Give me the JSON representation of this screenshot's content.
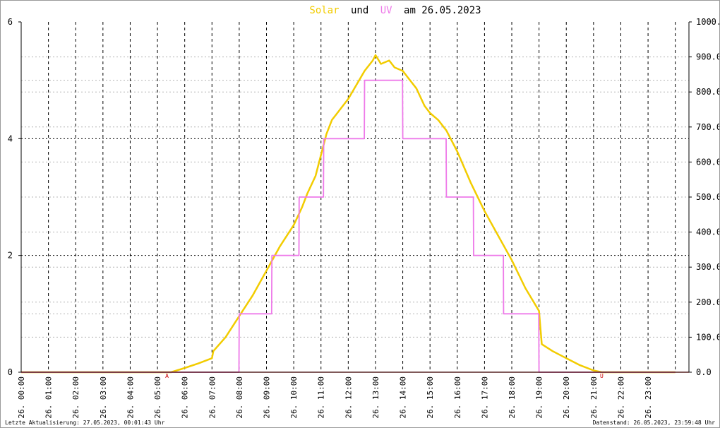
{
  "chart_data": {
    "type": "line",
    "title": {
      "part1": "Solar",
      "part2": "und",
      "part3": "UV",
      "part4": "am 26.05.2023"
    },
    "colors": {
      "solar": "#f2cc00",
      "uv": "#ee7ae9",
      "background": "#ffffff",
      "grid": "#000000",
      "marker": "#cc0000",
      "baseline": "#ff6666"
    },
    "x_axis": {
      "range_hours": [
        0,
        24.5
      ],
      "tick_labels": [
        "26. 00:00",
        "26. 01:00",
        "26. 02:00",
        "26. 03:00",
        "26. 04:00",
        "26. 05:00",
        "26. 06:00",
        "26. 07:00",
        "26. 08:00",
        "26. 09:00",
        "26. 10:00",
        "26. 11:00",
        "26. 12:00",
        "26. 13:00",
        "26. 14:00",
        "26. 15:00",
        "26. 16:00",
        "26. 17:00",
        "26. 18:00",
        "26. 19:00",
        "26. 20:00",
        "26. 21:00",
        "26. 22:00",
        "26. 23:00"
      ]
    },
    "y_left": {
      "range": [
        0,
        6
      ],
      "tick_labels": [
        "0",
        "2",
        "4",
        "6"
      ],
      "ticks": [
        0,
        2,
        4,
        6
      ],
      "minor_grid": [
        1,
        3,
        5
      ]
    },
    "y_right": {
      "range": [
        0,
        1000
      ],
      "tick_labels": [
        "0.0",
        "100.0",
        "200.0",
        "300.0",
        "400.0",
        "500.0",
        "600.0",
        "700.0",
        "800.0",
        "900.0",
        "1000.0"
      ],
      "ticks": [
        0,
        100,
        200,
        300,
        400,
        500,
        600,
        700,
        800,
        900,
        1000
      ]
    },
    "markers": {
      "sunrise_label": "A",
      "sunrise_hour": 5.35,
      "sunset_label": "U",
      "sunset_hour": 21.3
    },
    "series": [
      {
        "name": "Solar",
        "axis": "right",
        "points": [
          [
            0,
            0
          ],
          [
            5.5,
            0
          ],
          [
            6,
            12
          ],
          [
            6.5,
            25
          ],
          [
            7,
            40
          ],
          [
            7.05,
            60
          ],
          [
            7.5,
            100
          ],
          [
            8,
            160
          ],
          [
            8.5,
            220
          ],
          [
            9,
            290
          ],
          [
            9.5,
            360
          ],
          [
            10,
            420
          ],
          [
            10.3,
            470
          ],
          [
            10.5,
            510
          ],
          [
            10.8,
            560
          ],
          [
            11,
            620
          ],
          [
            11.2,
            680
          ],
          [
            11.4,
            720
          ],
          [
            11.6,
            740
          ],
          [
            11.8,
            760
          ],
          [
            12,
            780
          ],
          [
            12.3,
            820
          ],
          [
            12.6,
            860
          ],
          [
            12.9,
            890
          ],
          [
            13,
            905
          ],
          [
            13.2,
            880
          ],
          [
            13.5,
            890
          ],
          [
            13.7,
            870
          ],
          [
            14,
            860
          ],
          [
            14.2,
            840
          ],
          [
            14.5,
            810
          ],
          [
            14.8,
            760
          ],
          [
            15,
            740
          ],
          [
            15.3,
            720
          ],
          [
            15.6,
            690
          ],
          [
            16,
            630
          ],
          [
            16.5,
            540
          ],
          [
            17,
            460
          ],
          [
            17.5,
            390
          ],
          [
            18,
            320
          ],
          [
            18.5,
            240
          ],
          [
            19,
            175
          ],
          [
            19.1,
            80
          ],
          [
            19.5,
            60
          ],
          [
            20,
            40
          ],
          [
            20.5,
            20
          ],
          [
            21,
            5
          ],
          [
            21.3,
            0
          ],
          [
            24,
            0
          ]
        ]
      },
      {
        "name": "UV",
        "axis": "left",
        "points": [
          [
            0,
            0
          ],
          [
            7.99,
            0
          ],
          [
            8,
            1
          ],
          [
            9.19,
            1
          ],
          [
            9.2,
            2
          ],
          [
            10.19,
            2
          ],
          [
            10.2,
            3
          ],
          [
            11.09,
            3
          ],
          [
            11.1,
            4
          ],
          [
            12.59,
            4
          ],
          [
            12.6,
            5
          ],
          [
            13.99,
            5
          ],
          [
            14,
            4
          ],
          [
            15.59,
            4
          ],
          [
            15.6,
            3
          ],
          [
            16.59,
            3
          ],
          [
            16.6,
            2
          ],
          [
            17.69,
            2
          ],
          [
            17.7,
            1
          ],
          [
            18.99,
            1
          ],
          [
            19,
            0
          ],
          [
            24,
            0
          ]
        ]
      }
    ],
    "footer": {
      "left": "Letzte Aktualisierung: 27.05.2023, 00:01:43 Uhr",
      "right": "Datenstand: 26.05.2023, 23:59:48 Uhr"
    }
  }
}
